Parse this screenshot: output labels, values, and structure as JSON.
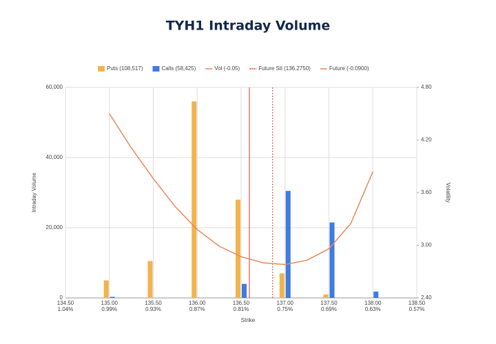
{
  "chart_data": {
    "type": "bar-line",
    "title": "TYH1 Intraday Volume",
    "xlabel": "Strike",
    "ylabel": "Intraday Volume",
    "y2label": "Volatility",
    "xlim": [
      134.5,
      138.5
    ],
    "xticks": [
      {
        "value": 134.5,
        "label": "134.50"
      },
      {
        "value": 135,
        "label": "135.00"
      },
      {
        "value": 135.5,
        "label": "135.50"
      },
      {
        "value": 136,
        "label": "136.00"
      },
      {
        "value": 136.5,
        "label": "136.50"
      },
      {
        "value": 137,
        "label": "137.00"
      },
      {
        "value": 137.5,
        "label": "137.50"
      },
      {
        "value": 138,
        "label": "138.00"
      },
      {
        "value": 138.5,
        "label": "138.50"
      }
    ],
    "xtick_percent_labels": [
      "1.04%",
      "0.99%",
      "0.93%",
      "0.87%",
      "0.81%",
      "0.75%",
      "0.69%",
      "0.63%",
      "0.57%"
    ],
    "ylim": [
      0,
      60000
    ],
    "yticks": [
      0,
      {
        "value": 20000,
        "label": "20,000"
      },
      {
        "value": 40000,
        "label": "40,000"
      },
      {
        "value": 60000,
        "label": "60,000"
      }
    ],
    "y2lim": [
      2.4,
      4.8
    ],
    "y2ticks": [
      {
        "value": 2.4,
        "label": "2.40"
      },
      {
        "value": 3,
        "label": "3.00"
      },
      {
        "value": 3.6,
        "label": "3.60"
      },
      {
        "value": 4.2,
        "label": "4.20"
      },
      {
        "value": 4.8,
        "label": "4.80"
      }
    ],
    "grid": true,
    "x": [
      135,
      135.5,
      136,
      136.5,
      137,
      137.5,
      138
    ],
    "series": [
      {
        "name": "Puts (108,517)",
        "color": "#f0b44f",
        "values": [
          5000,
          10500,
          56000,
          28000,
          7000,
          1000,
          0
        ]
      },
      {
        "name": "Calls (58,425)",
        "color": "#3f7be0",
        "values": [
          300,
          0,
          0,
          4000,
          30500,
          21500,
          1800
        ]
      }
    ],
    "vol": {
      "name": "Vol (-0.05)",
      "color": "#e8875a",
      "axis": "y2",
      "x": [
        135,
        135.25,
        135.5,
        135.75,
        136,
        136.25,
        136.5,
        136.75,
        137,
        137.25,
        137.5,
        137.75,
        138
      ],
      "values": [
        4.5,
        4.11,
        3.76,
        3.44,
        3.18,
        2.99,
        2.87,
        2.8,
        2.78,
        2.83,
        2.96,
        3.25,
        3.84
      ]
    },
    "vlines": [
      {
        "name": "Future Stl (136.2750)",
        "color": "#d9342b",
        "dashed": true,
        "value": 136.859
      },
      {
        "name": "Future (-0.0900)",
        "color": "#d9342b",
        "dashed": false,
        "value": 136.594
      }
    ]
  }
}
